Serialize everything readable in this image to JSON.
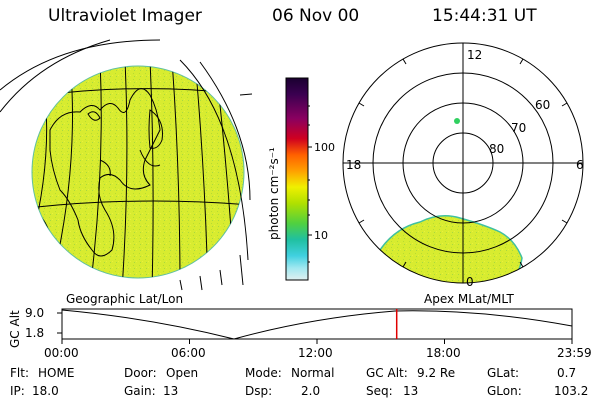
{
  "header": {
    "instrument": "Ultraviolet Imager",
    "date": "06 Nov 00",
    "time": "15:44:31 UT"
  },
  "colorbar": {
    "unit_label": "photon cm⁻²s⁻¹",
    "ticks": [
      "100",
      "10"
    ],
    "colors": [
      "#1a0030",
      "#3a0050",
      "#8a0060",
      "#d00020",
      "#ff6000",
      "#ffa000",
      "#f0f000",
      "#b0e000",
      "#50d040",
      "#20c0a0",
      "#40d0e0",
      "#a0e8f0",
      "#e0f0f0"
    ]
  },
  "polar_plot": {
    "mlt_labels": {
      "top": "12",
      "left": "18",
      "right": "6",
      "bottom": "0"
    },
    "lat_labels": [
      "60",
      "70",
      "80"
    ]
  },
  "projection_labels": {
    "left": "Geographic Lat/Lon",
    "right": "Apex MLat/MLT"
  },
  "altitude_plot": {
    "ylabel": "GC Alt",
    "yticks": [
      "9.0",
      "1.8"
    ],
    "xticks": [
      "00:00",
      "06:00",
      "12:00",
      "18:00",
      "23:59"
    ],
    "current_time_marker_hour": 15.74
  },
  "status": {
    "row1": [
      {
        "label": "Flt:",
        "value": "HOME"
      },
      {
        "label": "Door:",
        "value": "Open"
      },
      {
        "label": "Mode:",
        "value": "Normal"
      },
      {
        "label": "GC Alt:",
        "value": "9.2 Re"
      },
      {
        "label": "GLat:",
        "value": "0.7"
      }
    ],
    "row2": [
      {
        "label": "IP:",
        "value": "18.0"
      },
      {
        "label": "Gain:",
        "value": "13"
      },
      {
        "label": "Dsp:",
        "value": "2.0"
      },
      {
        "label": "Seq:",
        "value": "13"
      },
      {
        "label": "GLon:",
        "value": "103.2"
      }
    ]
  },
  "colors": {
    "image_fill": "#d8ec30",
    "marker": "#e00000",
    "spot": "#30d060"
  }
}
